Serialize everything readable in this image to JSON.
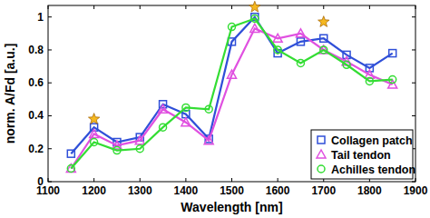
{
  "chart_data": {
    "type": "line",
    "xlabel": "Wavelength [nm]",
    "ylabel": "norm. A/Fd [a.u.]",
    "x": [
      1150,
      1200,
      1250,
      1300,
      1350,
      1400,
      1450,
      1500,
      1550,
      1600,
      1650,
      1700,
      1750,
      1800,
      1850
    ],
    "series": [
      {
        "name": "Collagen patch",
        "color": "#2f4fd8",
        "marker": "square",
        "values": [
          0.17,
          0.33,
          0.24,
          0.27,
          0.47,
          0.41,
          0.26,
          0.85,
          1.0,
          0.78,
          0.85,
          0.87,
          0.77,
          0.69,
          0.78
        ]
      },
      {
        "name": "Tail tendon",
        "color": "#e050e0",
        "marker": "triangle",
        "values": [
          0.08,
          0.29,
          0.22,
          0.25,
          0.44,
          0.36,
          0.25,
          0.65,
          0.93,
          0.87,
          0.9,
          0.8,
          0.73,
          0.65,
          0.59
        ]
      },
      {
        "name": "Achilles tendon",
        "color": "#33dd33",
        "marker": "circle",
        "values": [
          0.08,
          0.24,
          0.19,
          0.2,
          0.33,
          0.45,
          0.44,
          0.94,
          0.99,
          0.8,
          0.72,
          0.8,
          0.71,
          0.61,
          0.62
        ]
      }
    ],
    "stars": {
      "x": [
        1200,
        1550,
        1700
      ],
      "y": [
        0.38,
        1.06,
        0.97
      ],
      "color": "#f5b820"
    },
    "xlim": [
      1100,
      1900
    ],
    "xticks": [
      1100,
      1200,
      1300,
      1400,
      1500,
      1600,
      1700,
      1800,
      1900
    ],
    "ylim": [
      0,
      1.07
    ],
    "yticks": [
      0,
      0.2,
      0.4,
      0.6,
      0.8,
      1
    ],
    "grid": false,
    "legend": "lower right"
  }
}
